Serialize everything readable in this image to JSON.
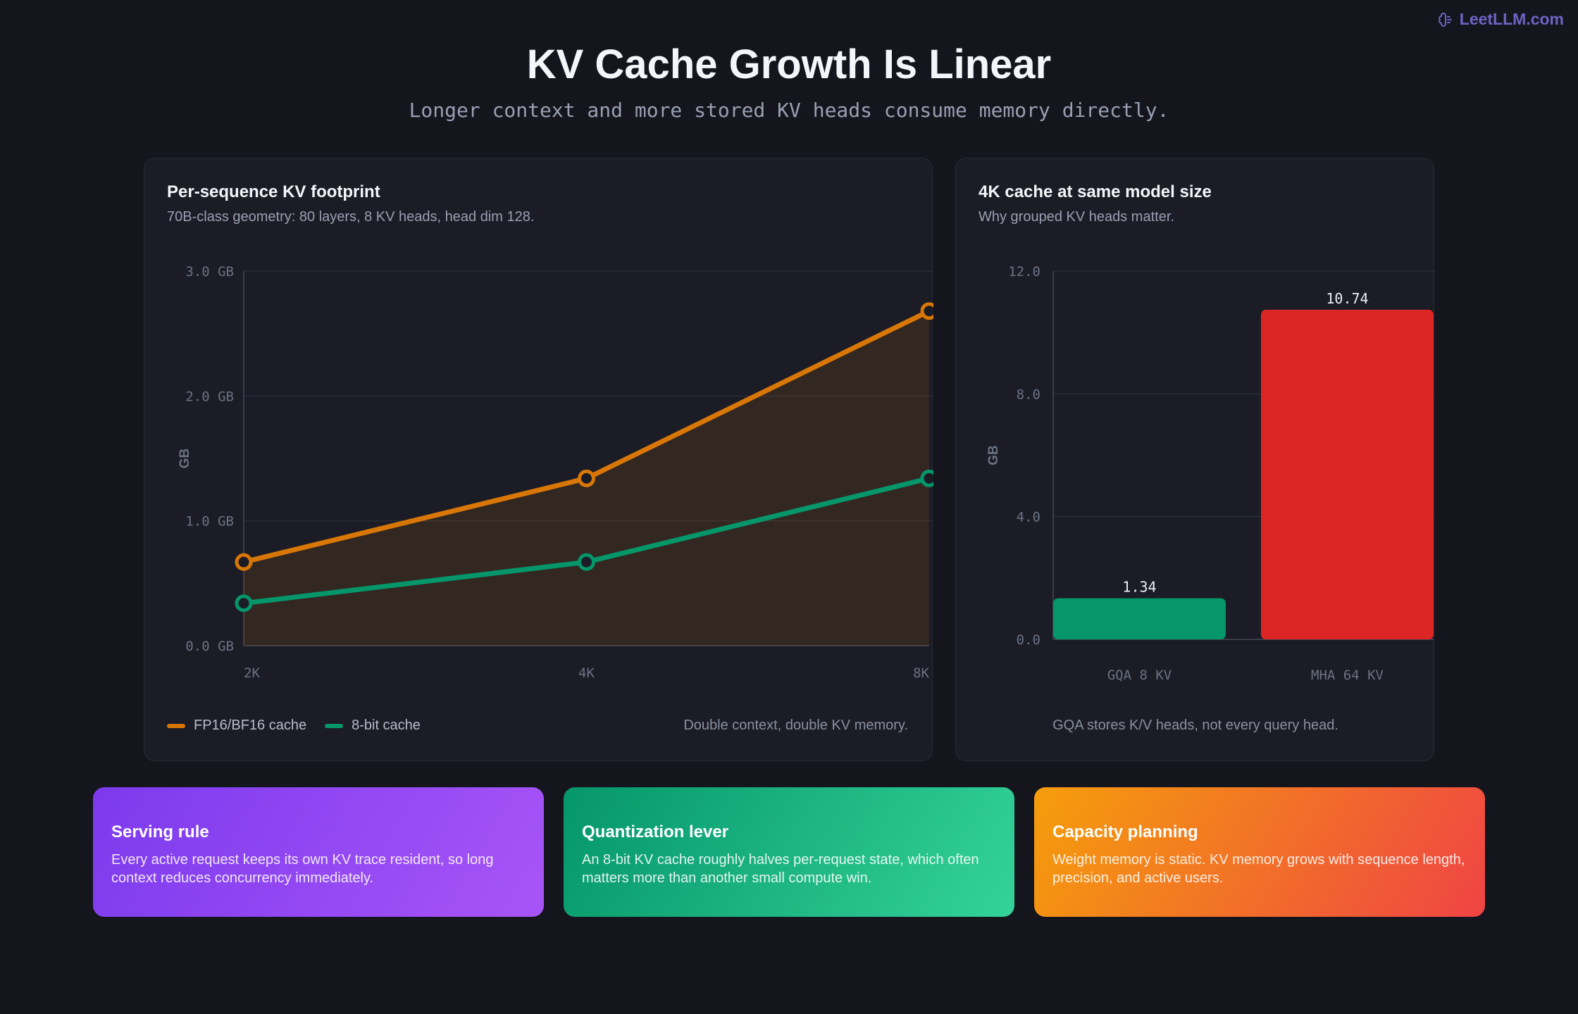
{
  "brand": {
    "name": "LeetLLM.com",
    "icon": "brain-icon",
    "color": "#6f63c4"
  },
  "header": {
    "title": "KV Cache Growth Is Linear",
    "subtitle": "Longer context and more stored KV heads consume memory directly."
  },
  "chart_data": [
    {
      "type": "line",
      "title": "Per-sequence KV footprint",
      "subtitle": "70B-class geometry: 80 layers, 8 KV heads, head dim 128.",
      "categories": [
        "2K",
        "4K",
        "8K"
      ],
      "series": [
        {
          "name": "FP16/BF16 cache",
          "color": "#d97706",
          "values": [
            0.67,
            1.34,
            2.68
          ],
          "area": true
        },
        {
          "name": "8-bit cache",
          "color": "#059669",
          "values": [
            0.34,
            0.67,
            1.34
          ]
        }
      ],
      "ylabel": "GB",
      "ylim": [
        0,
        3
      ],
      "yticks": [
        "0.0 GB",
        "1.0 GB",
        "2.0 GB",
        "3.0 GB"
      ],
      "ytick_values": [
        0,
        1,
        2,
        3
      ],
      "grid": true,
      "legend": "bottom-left",
      "note": "Double context, double KV memory."
    },
    {
      "type": "bar",
      "title": "4K cache at same model size",
      "subtitle": "Why grouped KV heads matter.",
      "categories": [
        "GQA 8 KV",
        "MHA 64 KV"
      ],
      "values": [
        1.34,
        10.74
      ],
      "value_labels": [
        "1.34",
        "10.74"
      ],
      "colors": [
        "#059669",
        "#dc2626"
      ],
      "ylabel": "GB",
      "ylim": [
        0,
        12
      ],
      "yticks": [
        "0.0",
        "4.0",
        "8.0",
        "12.0"
      ],
      "ytick_values": [
        0,
        4,
        8,
        12
      ],
      "grid": true,
      "note": "GQA stores K/V heads, not every query head."
    }
  ],
  "cards": [
    {
      "title": "Serving rule",
      "text": "Every active request keeps its own KV trace resident, so long context reduces concurrency immediately."
    },
    {
      "title": "Quantization lever",
      "text": "An 8-bit KV cache roughly halves per-request state, which often matters more than another small compute win."
    },
    {
      "title": "Capacity planning",
      "text": "Weight memory is static. KV memory grows with sequence length, precision, and active users."
    }
  ]
}
